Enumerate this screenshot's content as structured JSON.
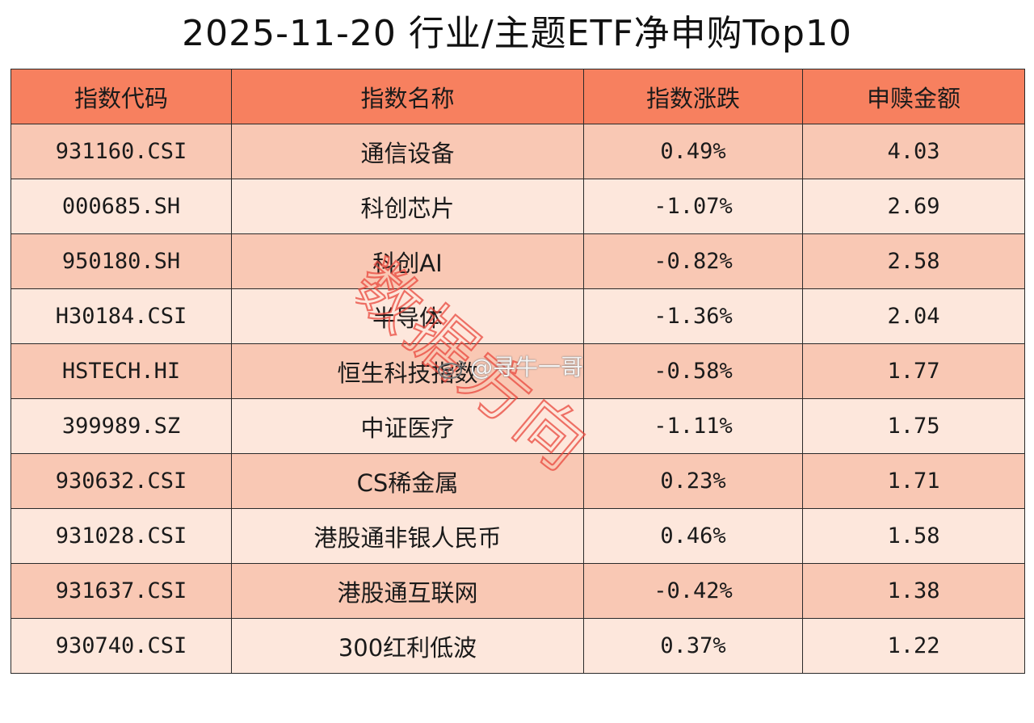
{
  "title": "2025-11-20 行业/主题ETF净申购Top10",
  "table": {
    "headers": [
      "指数代码",
      "指数名称",
      "指数涨跌",
      "申赎金额"
    ],
    "rows": [
      {
        "code": "931160.CSI",
        "name": "通信设备",
        "change": "0.49%",
        "amount": "4.03"
      },
      {
        "code": "000685.SH",
        "name": "科创芯片",
        "change": "-1.07%",
        "amount": "2.69"
      },
      {
        "code": "950180.SH",
        "name": "科创AI",
        "change": "-0.82%",
        "amount": "2.58"
      },
      {
        "code": "H30184.CSI",
        "name": "半导体",
        "change": "-1.36%",
        "amount": "2.04"
      },
      {
        "code": "HSTECH.HI",
        "name": "恒生科技指数",
        "change": "-0.58%",
        "amount": "1.77"
      },
      {
        "code": "399989.SZ",
        "name": "中证医疗",
        "change": "-1.11%",
        "amount": "1.75"
      },
      {
        "code": "930632.CSI",
        "name": "CS稀金属",
        "change": "0.23%",
        "amount": "1.71"
      },
      {
        "code": "931028.CSI",
        "name": "港股通非银人民币",
        "change": "0.46%",
        "amount": "1.58"
      },
      {
        "code": "931637.CSI",
        "name": "港股通互联网",
        "change": "-0.42%",
        "amount": "1.38"
      },
      {
        "code": "930740.CSI",
        "name": "300红利低波",
        "change": "0.37%",
        "amount": "1.22"
      }
    ]
  },
  "watermark": {
    "text": "数据方向",
    "color": "#e8473c"
  },
  "weibo_mark": {
    "icon": "weibo-logo-icon",
    "text": "@寻牛一哥"
  },
  "colors": {
    "header_bg": "#f7805f",
    "row_odd_bg": "#f9c8b4",
    "row_even_bg": "#fde7dc",
    "border": "#2a2a2a"
  }
}
